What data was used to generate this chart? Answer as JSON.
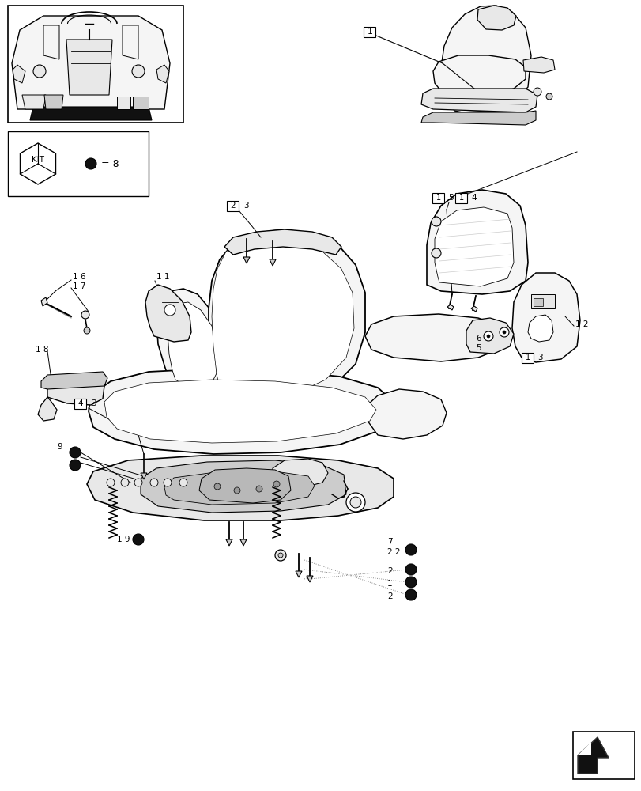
{
  "bg_color": "#ffffff",
  "line_color": "#000000",
  "fig_width": 8.12,
  "fig_height": 10.0,
  "dpi": 100,
  "colors": {
    "outline": "#000000",
    "fill_light": "#f5f5f5",
    "fill_medium": "#e8e8e8",
    "fill_dark": "#cccccc",
    "fill_black": "#111111",
    "white": "#ffffff",
    "gray_line": "#aaaaaa"
  }
}
